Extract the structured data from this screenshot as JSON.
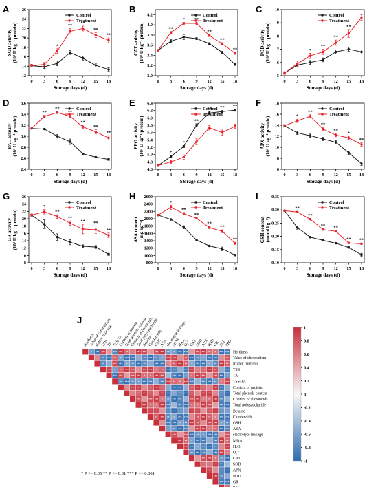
{
  "chart_data": [
    {
      "panel": "A",
      "type": "line",
      "x": [
        0,
        3,
        6,
        9,
        12,
        15,
        18
      ],
      "xlabel": "Storage days (d)",
      "ylabel_main": "SOD activity",
      "ylabel_sub": "(10³ U kg⁻¹ protein)",
      "ylim": [
        12,
        26
      ],
      "yticks": [
        12,
        14,
        16,
        18,
        20,
        22,
        24,
        26
      ],
      "series": [
        {
          "name": "Control",
          "color": "#1a1a1a",
          "values": [
            14.1,
            13.9,
            14.6,
            16.9,
            15.7,
            14.2,
            13.3
          ],
          "err": [
            0.3,
            0.4,
            0.5,
            0.4,
            0.4,
            0.4,
            0.4
          ]
        },
        {
          "name": "Treatment",
          "color": "#e8242a",
          "values": [
            14.1,
            14.4,
            17.2,
            21.4,
            22.0,
            20.6,
            19.5
          ],
          "err": [
            0.3,
            0.4,
            0.5,
            0.6,
            0.5,
            0.5,
            0.5
          ]
        }
      ],
      "sig": [
        "",
        "",
        "*",
        "**",
        "**",
        "**",
        "**"
      ]
    },
    {
      "panel": "B",
      "type": "line",
      "x": [
        0,
        3,
        6,
        9,
        12,
        15,
        18
      ],
      "xlabel": "Storage days (d)",
      "ylabel_main": "CAT activity",
      "ylabel_sub": "(10³ U kg⁻¹ protein)",
      "ylim": [
        3.0,
        4.3
      ],
      "yticks": [
        3.0,
        3.2,
        3.4,
        3.6,
        3.8,
        4.0,
        4.2
      ],
      "series": [
        {
          "name": "Control",
          "color": "#1a1a1a",
          "values": [
            3.5,
            3.68,
            3.76,
            3.73,
            3.63,
            3.46,
            3.22
          ],
          "err": [
            0.01,
            0.03,
            0.05,
            0.02,
            0.02,
            0.02,
            0.02
          ]
        },
        {
          "name": "Treatment",
          "color": "#e8242a",
          "values": [
            3.5,
            3.85,
            4.03,
            4.03,
            3.79,
            3.63,
            3.44
          ],
          "err": [
            0.01,
            0.02,
            0.02,
            0.02,
            0.02,
            0.02,
            0.02
          ]
        }
      ],
      "sig": [
        "",
        "**",
        "*",
        "**",
        "**",
        "**",
        "**"
      ]
    },
    {
      "panel": "C",
      "type": "line",
      "x": [
        0,
        3,
        6,
        9,
        12,
        15,
        18
      ],
      "xlabel": "Storage days (d)",
      "ylabel_main": "POD activity",
      "ylabel_sub": "(10³ U kg⁻¹ protein)",
      "ylim": [
        5,
        10
      ],
      "yticks": [
        5,
        6,
        7,
        8,
        9,
        10
      ],
      "series": [
        {
          "name": "Control",
          "color": "#1a1a1a",
          "values": [
            5.2,
            5.8,
            6.0,
            6.2,
            6.8,
            7.0,
            6.8
          ],
          "err": [
            0.1,
            0.15,
            0.15,
            0.15,
            0.15,
            0.15,
            0.15
          ]
        },
        {
          "name": "Treatment",
          "color": "#e8242a",
          "values": [
            5.2,
            5.9,
            6.5,
            6.8,
            7.5,
            8.2,
            9.4
          ],
          "err": [
            0.1,
            0.2,
            0.2,
            0.2,
            0.2,
            0.3,
            0.2
          ]
        }
      ],
      "sig": [
        "",
        "",
        "*",
        "**",
        "**",
        "**",
        ""
      ]
    },
    {
      "panel": "D",
      "type": "line",
      "x": [
        0,
        3,
        6,
        9,
        12,
        15,
        18
      ],
      "xlabel": "Storage days (d)",
      "ylabel_main": "PAL activity",
      "ylabel_sub": "(10³ U kg⁻¹ protein)",
      "ylim": [
        2.4,
        3.6
      ],
      "yticks": [
        2.4,
        2.6,
        2.8,
        3.0,
        3.2,
        3.4,
        3.6
      ],
      "series": [
        {
          "name": "Control",
          "color": "#1a1a1a",
          "values": [
            3.14,
            3.13,
            3.0,
            2.9,
            2.68,
            2.62,
            2.58
          ],
          "err": [
            0.01,
            0.01,
            0.03,
            0.05,
            0.01,
            0.01,
            0.02
          ]
        },
        {
          "name": "Treatment",
          "color": "#e8242a",
          "values": [
            3.14,
            3.36,
            3.43,
            3.36,
            3.17,
            3.08,
            2.97
          ],
          "err": [
            0.01,
            0.02,
            0.02,
            0.03,
            0.03,
            0.04,
            0.04
          ]
        }
      ],
      "sig": [
        "",
        "**",
        "**",
        "**",
        "**",
        "**",
        "**"
      ]
    },
    {
      "panel": "E",
      "type": "line",
      "x": [
        0,
        3,
        6,
        9,
        12,
        15,
        18
      ],
      "xlabel": "Storage days (d)",
      "ylabel_main": "PPO activity",
      "ylabel_sub": "(10³ U kg⁻¹ protein)",
      "ylim": [
        4.6,
        6.4
      ],
      "yticks": [
        4.6,
        4.8,
        5.0,
        5.2,
        5.4,
        5.6,
        5.8,
        6.0,
        6.2,
        6.4
      ],
      "series": [
        {
          "name": "Control",
          "color": "#1a1a1a",
          "values": [
            4.7,
            4.95,
            5.22,
            5.8,
            6.13,
            6.17,
            6.21
          ],
          "err": [
            0.02,
            0.03,
            0.03,
            0.04,
            0.04,
            0.03,
            0.03
          ]
        },
        {
          "name": "Treatment",
          "color": "#e8242a",
          "values": [
            4.7,
            4.8,
            4.93,
            5.35,
            5.73,
            5.6,
            5.77
          ],
          "err": [
            0.02,
            0.04,
            0.06,
            0.08,
            0.06,
            0.07,
            0.06
          ]
        }
      ],
      "sig": [
        "",
        "*",
        "*",
        "**",
        "**",
        "**",
        "**"
      ]
    },
    {
      "panel": "F",
      "type": "line",
      "x": [
        0,
        3,
        6,
        9,
        12,
        15,
        18
      ],
      "xlabel": "Storage days (d)",
      "ylabel_main": "APX activity",
      "ylabel_sub": "(10³ U kg⁻¹ protein)",
      "ylim": [
        6,
        18
      ],
      "yticks": [
        6,
        8,
        10,
        12,
        14,
        16,
        18
      ],
      "series": [
        {
          "name": "Control",
          "color": "#1a1a1a",
          "values": [
            13.9,
            12.6,
            12.1,
            11.5,
            10.9,
            9.0,
            7.0
          ],
          "err": [
            0.2,
            0.3,
            0.3,
            0.3,
            0.3,
            0.3,
            0.3
          ]
        },
        {
          "name": "Treatment",
          "color": "#e8242a",
          "values": [
            13.9,
            14.8,
            15.6,
            13.3,
            12.2,
            11.7,
            10.5
          ],
          "err": [
            0.2,
            0.3,
            0.3,
            0.3,
            0.3,
            0.3,
            0.3
          ]
        }
      ],
      "sig": [
        "",
        "*",
        "**",
        "**",
        "**",
        "*",
        "**"
      ]
    },
    {
      "panel": "G",
      "type": "line",
      "x": [
        0,
        3,
        6,
        9,
        12,
        15,
        18
      ],
      "xlabel": "Storage days (d)",
      "ylabel_main": "GR activity",
      "ylabel_sub": "(10³ U kg⁻¹ protein)",
      "ylim": [
        8,
        26
      ],
      "yticks": [
        8,
        10,
        12,
        14,
        16,
        18,
        20,
        22,
        24,
        26
      ],
      "series": [
        {
          "name": "Control",
          "color": "#1a1a1a",
          "values": [
            21.0,
            18.5,
            15.0,
            13.6,
            12.5,
            12.3,
            10.3
          ],
          "err": [
            0.3,
            1.2,
            0.9,
            0.7,
            0.4,
            0.4,
            0.3
          ]
        },
        {
          "name": "Treatment",
          "color": "#e8242a",
          "values": [
            21.0,
            21.9,
            20.6,
            18.8,
            17.2,
            17.0,
            15.5
          ],
          "err": [
            0.3,
            0.6,
            0.5,
            0.6,
            1.3,
            1.0,
            0.6
          ]
        }
      ],
      "sig": [
        "",
        "*",
        "**",
        "**",
        "**",
        "**",
        "**"
      ]
    },
    {
      "panel": "H",
      "type": "line",
      "x": [
        0,
        3,
        6,
        9,
        12,
        15,
        18
      ],
      "xlabel": "Storage days (d)",
      "ylabel_main": "ASA content",
      "ylabel_sub": "(mg kg⁻¹)",
      "ylim": [
        800,
        2600
      ],
      "yticks": [
        800,
        1000,
        1200,
        1400,
        1600,
        1800,
        2000,
        2200,
        2400,
        2600
      ],
      "series": [
        {
          "name": "Control",
          "color": "#1a1a1a",
          "values": [
            2100,
            1980,
            1770,
            1420,
            1260,
            1180,
            1010
          ],
          "err": [
            20,
            20,
            40,
            20,
            20,
            50,
            20
          ]
        },
        {
          "name": "Treatment",
          "color": "#e8242a",
          "values": [
            2100,
            2310,
            2140,
            2010,
            1760,
            1660,
            1330
          ],
          "err": [
            20,
            60,
            30,
            20,
            30,
            40,
            30
          ]
        }
      ],
      "sig": [
        "",
        "*",
        "**",
        "**",
        "**",
        "**",
        "**"
      ]
    },
    {
      "panel": "I",
      "type": "line",
      "x": [
        0,
        3,
        6,
        9,
        12,
        15,
        18
      ],
      "xlabel": "Storage days (d)",
      "ylabel_main": "GSH content",
      "ylabel_sub": "(mmol kg⁻¹)",
      "ylim": [
        0.1,
        0.35
      ],
      "yticks": [
        0.1,
        0.15,
        0.2,
        0.25,
        0.3,
        0.35
      ],
      "series": [
        {
          "name": "Control",
          "color": "#1a1a1a",
          "values": [
            0.297,
            0.233,
            0.197,
            0.185,
            0.174,
            0.158,
            0.13
          ],
          "err": [
            0.003,
            0.006,
            0.003,
            0.003,
            0.003,
            0.003,
            0.006
          ]
        },
        {
          "name": "Treatment",
          "color": "#e8242a",
          "values": [
            0.297,
            0.292,
            0.265,
            0.226,
            0.219,
            0.175,
            0.172
          ],
          "err": [
            0.003,
            0.003,
            0.003,
            0.003,
            0.003,
            0.003,
            0.003
          ]
        }
      ],
      "sig": [
        "",
        "**",
        "**",
        "**",
        "**",
        "**",
        "**"
      ]
    },
    {
      "panel": "J",
      "type": "heatmap",
      "variables": [
        "Hardness",
        "Value of chromatism",
        "Rotten fruit rate",
        "TSS",
        "TA",
        "TSS/TA",
        "Content of protein",
        "Total phenols content",
        "Content of flavonoids",
        "Total polysaccharide",
        "Betaine",
        "Carotenoids",
        "GSH",
        "ASA",
        "electrolyte leakage",
        "MDA",
        "H₂O₂",
        "O₂⁻",
        "CAT",
        "SOD",
        "APX",
        "POD",
        "GR",
        "PAL",
        "PPO"
      ],
      "top_labels": [
        "Hardness",
        "Value of chromatism",
        "Rotten fruit rate",
        "TSS",
        "TA",
        "TSS/TA",
        "Content of protein",
        "Total phenols content",
        "Content of flavonoids",
        "Total polysaccharide",
        "Betaine",
        "Carotenoids",
        "GSH",
        "ASA",
        "electrolyte leakage",
        "MDA",
        "H₂O₂",
        "O₂⁻",
        "CAT",
        "SOD",
        "APX",
        "POD",
        "GR",
        "PAL",
        "PPO"
      ],
      "group_signs": [
        1,
        -1,
        -1,
        1,
        1,
        -1,
        1,
        1,
        1,
        1,
        1,
        1,
        1,
        1,
        -1,
        -1,
        -1,
        -1,
        1,
        1,
        1,
        1,
        1,
        -1,
        -1
      ],
      "colorbar_ticks": [
        1,
        0.8,
        0.6,
        0.4,
        0.2,
        0,
        -0.2,
        -0.4,
        -0.6,
        -0.8,
        -1
      ],
      "colors": {
        "positive": "#c8303c",
        "negative": "#2f6bb0",
        "zero": "#f7f7f7"
      }
    }
  ],
  "legend": {
    "control": "Control",
    "treatment": "Treatment"
  },
  "footnote": "* P <= 0.05  ** P <= 0.01  *** P <= 0.001"
}
